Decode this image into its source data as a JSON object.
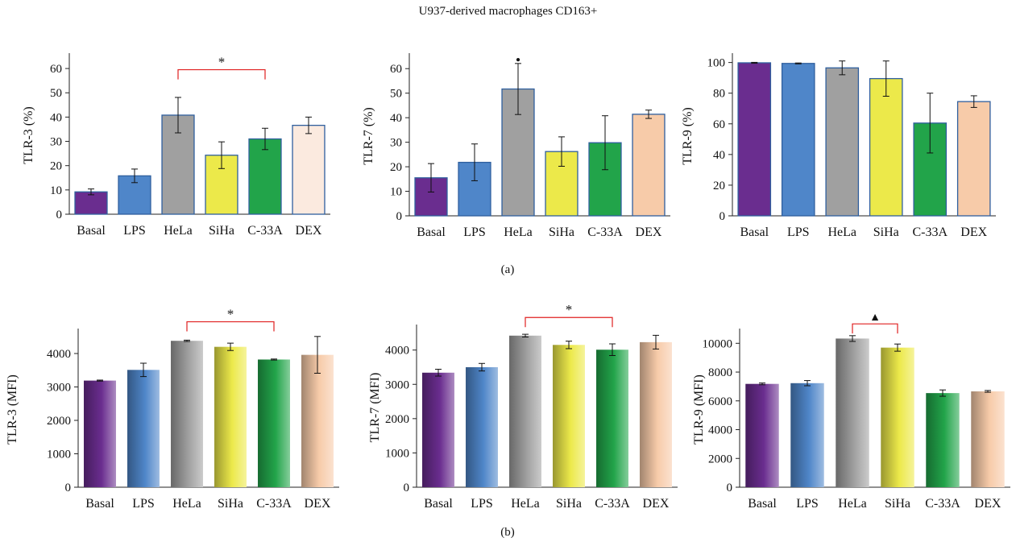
{
  "figure_title": "U937-derived macrophages CD163+",
  "panel_labels": {
    "a": "(a)",
    "b": "(b)"
  },
  "colors": {
    "Basal": "#6a2d8f",
    "LPS": "#4f86c9",
    "HeLa": "#a0a0a0",
    "SiHa": "#ece94a",
    "C-33A": "#22a44a",
    "DEX_a1": "#fbeadf",
    "DEX": "#f7cba9",
    "bracket": "#e02020",
    "bar_border": "#2f5f9e"
  },
  "chart_data": [
    {
      "type": "bar",
      "ylabel": "TLR-3 (%)",
      "categories": [
        "Basal",
        "LPS",
        "HeLa",
        "SiHa",
        "C-33A",
        "DEX"
      ],
      "values": [
        9.2,
        15.8,
        40.8,
        24.3,
        31.0,
        36.6
      ],
      "errors": [
        1.2,
        2.8,
        7.3,
        5.5,
        4.4,
        3.4
      ],
      "ylim": [
        0,
        65
      ],
      "yticks": [
        0,
        10,
        20,
        30,
        40,
        50,
        60
      ],
      "gradient": false,
      "dex_color": "DEX_a1",
      "annotations": [
        {
          "type": "bracket",
          "from": "HeLa",
          "to": "C-33A",
          "y": 59.5,
          "text": "*"
        }
      ]
    },
    {
      "type": "bar",
      "ylabel": "TLR-7 (%)",
      "categories": [
        "Basal",
        "LPS",
        "HeLa",
        "SiHa",
        "C-33A",
        "DEX"
      ],
      "values": [
        15.5,
        21.8,
        51.7,
        26.2,
        29.8,
        41.4
      ],
      "errors": [
        5.8,
        7.5,
        10.4,
        6.0,
        11.0,
        1.7
      ],
      "ylim": [
        0,
        65
      ],
      "yticks": [
        0,
        10,
        20,
        30,
        40,
        50,
        60
      ],
      "gradient": false,
      "dex_color": "DEX",
      "annotations": [
        {
          "type": "symbol",
          "over": "HeLa",
          "y": 63.5,
          "text": "•"
        }
      ]
    },
    {
      "type": "bar",
      "ylabel": "TLR-9 (%)",
      "categories": [
        "Basal",
        "LPS",
        "HeLa",
        "SiHa",
        "C-33A",
        "DEX"
      ],
      "values": [
        99.8,
        99.4,
        96.5,
        89.5,
        60.5,
        74.5
      ],
      "errors": [
        0.3,
        0.3,
        4.5,
        11.5,
        19.5,
        3.8
      ],
      "ylim": [
        0,
        104
      ],
      "yticks": [
        0,
        20,
        40,
        60,
        80,
        100
      ],
      "gradient": false,
      "dex_color": "DEX",
      "annotations": []
    },
    {
      "type": "bar",
      "ylabel": "TLR-3 (MFI)",
      "categories": [
        "Basal",
        "LPS",
        "HeLa",
        "SiHa",
        "C-33A",
        "DEX"
      ],
      "values": [
        3190,
        3510,
        4380,
        4200,
        3820,
        3960
      ],
      "errors": [
        15,
        200,
        20,
        110,
        15,
        550
      ],
      "ylim": [
        0,
        4650
      ],
      "yticks": [
        0,
        1000,
        2000,
        3000,
        4000
      ],
      "gradient": true,
      "dex_color": "DEX",
      "annotations": [
        {
          "type": "bracket",
          "from": "HeLa",
          "to": "C-33A",
          "y": 4950,
          "text": "*"
        }
      ]
    },
    {
      "type": "bar",
      "ylabel": "TLR-7 (MFI)",
      "categories": [
        "Basal",
        "LPS",
        "HeLa",
        "SiHa",
        "C-33A",
        "DEX"
      ],
      "values": [
        3340,
        3500,
        4420,
        4150,
        4010,
        4230
      ],
      "errors": [
        100,
        110,
        40,
        110,
        170,
        200
      ],
      "ylim": [
        0,
        4650
      ],
      "yticks": [
        0,
        1000,
        2000,
        3000,
        4000
      ],
      "gradient": true,
      "dex_color": "DEX",
      "annotations": [
        {
          "type": "bracket",
          "from": "HeLa",
          "to": "C-33A",
          "y": 4950,
          "text": "*"
        }
      ]
    },
    {
      "type": "bar",
      "ylabel": "TLR-9 (MFI)",
      "categories": [
        "Basal",
        "LPS",
        "HeLa",
        "SiHa",
        "C-33A",
        "DEX"
      ],
      "values": [
        7180,
        7230,
        10330,
        9700,
        6540,
        6660
      ],
      "errors": [
        60,
        180,
        200,
        250,
        220,
        60
      ],
      "ylim": [
        0,
        10800
      ],
      "yticks": [
        0,
        2000,
        4000,
        6000,
        8000,
        10000
      ],
      "gradient": true,
      "dex_color": "DEX",
      "annotations": [
        {
          "type": "bracket",
          "from": "HeLa",
          "to": "SiHa",
          "y": 11350,
          "text": "▲"
        }
      ]
    }
  ]
}
